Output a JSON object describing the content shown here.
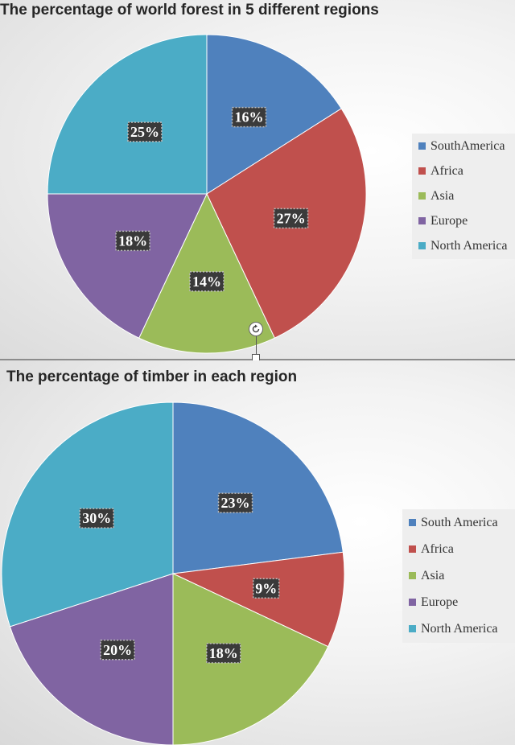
{
  "chart_data": [
    {
      "type": "pie",
      "title": "The percentage of world forest in 5 different regions",
      "categories": [
        "SouthAmerica",
        "Africa",
        "Asia",
        "Europe",
        "North America"
      ],
      "values": [
        16,
        27,
        14,
        18,
        25
      ],
      "data_labels": [
        "16%",
        "27%",
        "14%",
        "18%",
        "25%"
      ],
      "colors": [
        "#4f81bd",
        "#c0504d",
        "#9bbb59",
        "#8064a2",
        "#4bacc6"
      ],
      "start_angle_deg": 0,
      "direction": "clockwise",
      "legend_position": "right"
    },
    {
      "type": "pie",
      "title": "The percentage of timber in each region",
      "categories": [
        "South America",
        "Africa",
        "Asia",
        "Europe",
        "North America"
      ],
      "values": [
        23,
        9,
        18,
        20,
        30
      ],
      "data_labels": [
        "23%",
        "9%",
        "18%",
        "20%",
        "30%"
      ],
      "colors": [
        "#4f81bd",
        "#c0504d",
        "#9bbb59",
        "#8064a2",
        "#4bacc6"
      ],
      "start_angle_deg": 0,
      "direction": "clockwise",
      "legend_position": "right"
    }
  ],
  "ui": {
    "selection_handles": [
      "rotate-handle-icon",
      "resize-handle-icon"
    ]
  }
}
